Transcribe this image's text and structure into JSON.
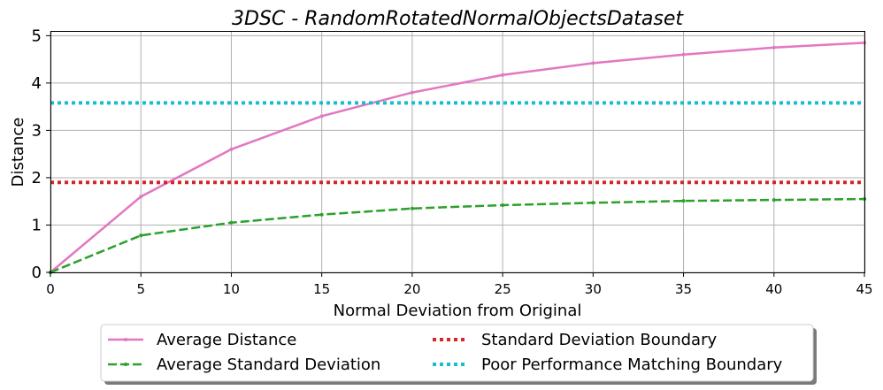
{
  "chart_data": {
    "type": "line",
    "title": "3DSC - RandomRotatedNormalObjectsDataset",
    "xlabel": "Normal Deviation from Original",
    "ylabel": "Distance",
    "xlim": [
      0,
      45
    ],
    "ylim": [
      0,
      5.1
    ],
    "grid": true,
    "legend_placement": "bottom-center",
    "x_ticks": [
      "0",
      "5",
      "10",
      "15",
      "20",
      "25",
      "30",
      "35",
      "40",
      "45"
    ],
    "y_ticks": [
      "0",
      "1",
      "2",
      "3",
      "4",
      "5"
    ],
    "x": [
      0,
      5,
      10,
      15,
      20,
      25,
      30,
      35,
      40,
      45
    ],
    "series": [
      {
        "name": "Average Distance",
        "values": [
          0,
          1.6,
          2.6,
          3.3,
          3.8,
          4.17,
          4.42,
          4.6,
          4.75,
          4.85
        ],
        "color": "#e377c2",
        "style": "solid-with-markers"
      },
      {
        "name": "Average Standard Deviation",
        "values": [
          0,
          0.78,
          1.05,
          1.22,
          1.35,
          1.42,
          1.47,
          1.51,
          1.53,
          1.55
        ],
        "color": "#2ca02c",
        "style": "dashed-with-markers"
      },
      {
        "name": "Standard Deviation Boundary",
        "values": [
          1.9,
          1.9,
          1.9,
          1.9,
          1.9,
          1.9,
          1.9,
          1.9,
          1.9,
          1.9
        ],
        "color": "#d62728",
        "style": "dotted"
      },
      {
        "name": "Poor Performance Matching Boundary",
        "values": [
          3.58,
          3.58,
          3.58,
          3.58,
          3.58,
          3.58,
          3.58,
          3.58,
          3.58,
          3.58
        ],
        "color": "#17becf",
        "style": "dotted"
      }
    ]
  }
}
